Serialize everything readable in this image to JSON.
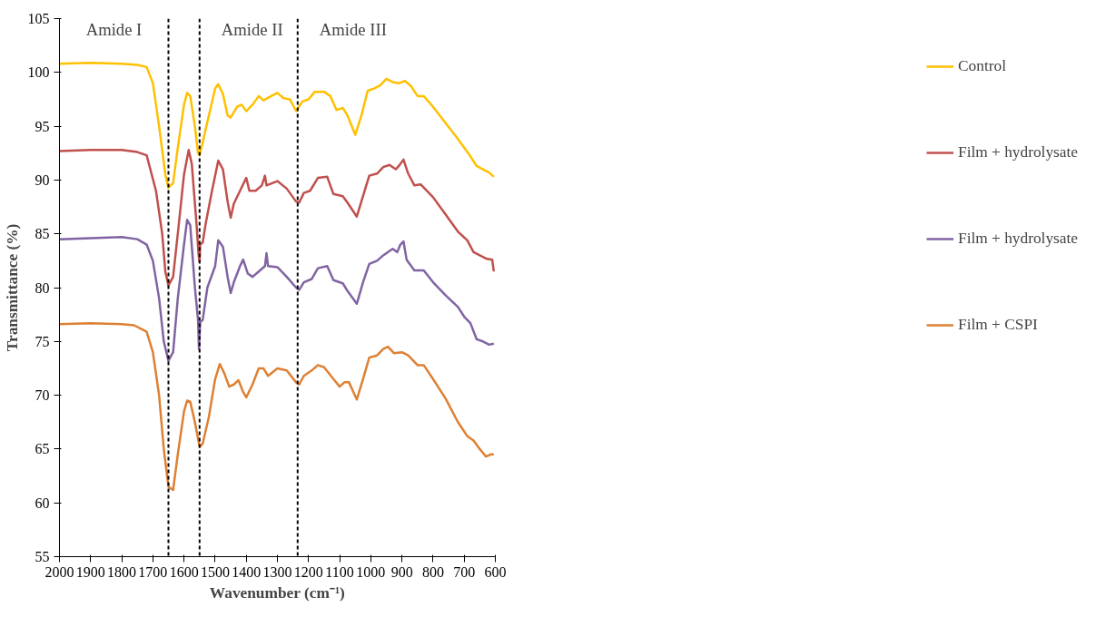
{
  "chart_data": {
    "type": "line",
    "xlabel": "Wavenumber (cm⁻¹)",
    "ylabel": "Transmittance (%)",
    "xlim": [
      2000,
      600
    ],
    "xticks": [
      2000,
      1900,
      1800,
      1700,
      1600,
      1500,
      1400,
      1300,
      1200,
      1100,
      1000,
      900,
      800,
      700,
      600
    ],
    "ylim": [
      55,
      105
    ],
    "yticks": [
      55,
      60,
      65,
      70,
      75,
      80,
      85,
      90,
      95,
      100,
      105
    ],
    "grid": false,
    "legend": "right",
    "marker": "none",
    "line_style": "solid",
    "ref_lines": [
      {
        "axis": "x",
        "value": 1650,
        "color": "#000000",
        "line_style": "dashed"
      },
      {
        "axis": "x",
        "value": 1550,
        "color": "#000000",
        "line_style": "dashed"
      },
      {
        "axis": "x",
        "value": 1235,
        "color": "#000000",
        "line_style": "dashed"
      }
    ],
    "annotations": [
      "Amide I",
      "Amide II",
      "Amide III"
    ],
    "series": [
      {
        "name": "Control",
        "color": "#ffc000",
        "x": [
          2000,
          1900,
          1800,
          1750,
          1720,
          1700,
          1680,
          1660,
          1650,
          1635,
          1620,
          1600,
          1590,
          1580,
          1565,
          1555,
          1550,
          1540,
          1520,
          1500,
          1490,
          1475,
          1460,
          1450,
          1430,
          1415,
          1400,
          1380,
          1360,
          1345,
          1320,
          1300,
          1280,
          1260,
          1240,
          1220,
          1200,
          1180,
          1150,
          1130,
          1110,
          1090,
          1075,
          1050,
          1030,
          1010,
          990,
          970,
          950,
          930,
          910,
          890,
          870,
          850,
          830,
          800,
          760,
          720,
          680,
          660,
          640,
          620,
          605
        ],
        "values": [
          100.8,
          100.9,
          100.8,
          100.7,
          100.5,
          99,
          95,
          90.5,
          89.3,
          89.7,
          93,
          97,
          98.1,
          97.8,
          95,
          92.5,
          92.3,
          93.5,
          96,
          98.5,
          98.9,
          98,
          96,
          95.8,
          96.8,
          97,
          96.4,
          97,
          97.8,
          97.4,
          97.8,
          98.1,
          97.6,
          97.5,
          96.4,
          97.3,
          97.5,
          98.2,
          98.2,
          97.8,
          96.5,
          96.7,
          96,
          94.2,
          96,
          98.3,
          98.5,
          98.8,
          99.4,
          99.1,
          99,
          99.2,
          98.7,
          97.8,
          97.8,
          96.8,
          95.3,
          93.8,
          92.2,
          91.3,
          91,
          90.7,
          90.3
        ]
      },
      {
        "name": "Film + hydrolysate",
        "color": "#c0504d",
        "x": [
          2000,
          1900,
          1800,
          1750,
          1720,
          1690,
          1670,
          1660,
          1650,
          1635,
          1620,
          1600,
          1585,
          1575,
          1560,
          1553,
          1550,
          1548,
          1540,
          1530,
          1510,
          1490,
          1475,
          1460,
          1450,
          1440,
          1420,
          1400,
          1390,
          1370,
          1350,
          1340,
          1335,
          1300,
          1270,
          1240,
          1230,
          1215,
          1195,
          1170,
          1140,
          1120,
          1090,
          1075,
          1045,
          1025,
          1005,
          980,
          960,
          940,
          920,
          910,
          895,
          880,
          860,
          840,
          800,
          760,
          720,
          690,
          670,
          650,
          630,
          610,
          605
        ],
        "values": [
          92.7,
          92.8,
          92.8,
          92.6,
          92.3,
          89,
          85,
          81.5,
          80.2,
          81,
          85,
          90.5,
          92.8,
          91.5,
          86,
          83,
          82.4,
          84,
          84.2,
          86,
          89,
          91.8,
          91,
          88,
          86.5,
          87.8,
          89,
          90.2,
          89,
          89,
          89.5,
          90.4,
          89.5,
          89.9,
          89.2,
          88,
          87.9,
          88.8,
          89,
          90.2,
          90.3,
          88.7,
          88.5,
          87.9,
          86.6,
          88.5,
          90.4,
          90.6,
          91.2,
          91.4,
          91,
          91.3,
          91.9,
          90.6,
          89.5,
          89.6,
          88.4,
          86.8,
          85.2,
          84.4,
          83.3,
          83,
          82.7,
          82.6,
          81.5
        ]
      },
      {
        "name": "Film + hydrolysate",
        "color": "#8064a2",
        "x": [
          2000,
          1900,
          1800,
          1750,
          1720,
          1700,
          1680,
          1665,
          1650,
          1635,
          1620,
          1600,
          1590,
          1580,
          1565,
          1555,
          1552,
          1548,
          1540,
          1525,
          1500,
          1490,
          1475,
          1460,
          1450,
          1440,
          1420,
          1410,
          1395,
          1380,
          1360,
          1340,
          1335,
          1330,
          1300,
          1270,
          1240,
          1230,
          1215,
          1190,
          1170,
          1140,
          1120,
          1090,
          1075,
          1045,
          1025,
          1005,
          980,
          960,
          930,
          915,
          905,
          895,
          885,
          860,
          830,
          800,
          760,
          720,
          700,
          680,
          660,
          640,
          620,
          605
        ],
        "values": [
          84.5,
          84.6,
          84.7,
          84.5,
          84,
          82.5,
          79,
          75,
          73.2,
          74,
          79,
          84,
          86.3,
          85.8,
          80,
          77,
          74.3,
          76.8,
          77,
          80,
          82,
          84.4,
          83.8,
          81,
          79.5,
          80.5,
          82,
          82.6,
          81.3,
          81,
          81.5,
          82,
          83.2,
          82,
          81.9,
          81,
          80,
          79.8,
          80.5,
          80.8,
          81.8,
          82,
          80.7,
          80.4,
          79.7,
          78.5,
          80.5,
          82.2,
          82.5,
          83,
          83.6,
          83.3,
          84,
          84.3,
          82.6,
          81.6,
          81.6,
          80.5,
          79.3,
          78.2,
          77.3,
          76.7,
          75.2,
          75,
          74.7,
          74.8
        ]
      },
      {
        "name": "Film + CSPI",
        "color": "#dd8033",
        "x": [
          2000,
          1900,
          1800,
          1760,
          1720,
          1700,
          1680,
          1665,
          1650,
          1635,
          1620,
          1600,
          1590,
          1580,
          1565,
          1550,
          1540,
          1520,
          1500,
          1485,
          1470,
          1455,
          1440,
          1425,
          1410,
          1400,
          1380,
          1360,
          1345,
          1330,
          1300,
          1270,
          1240,
          1230,
          1215,
          1190,
          1170,
          1150,
          1120,
          1100,
          1085,
          1070,
          1045,
          1025,
          1005,
          980,
          960,
          945,
          925,
          900,
          880,
          850,
          830,
          800,
          760,
          720,
          690,
          670,
          650,
          630,
          615,
          605
        ],
        "values": [
          76.6,
          76.7,
          76.6,
          76.5,
          75.9,
          74,
          70,
          65,
          61.5,
          61.2,
          64.5,
          68.5,
          69.5,
          69.4,
          67.5,
          65.2,
          65.5,
          68,
          71.5,
          72.9,
          72,
          70.8,
          71,
          71.4,
          70.3,
          69.8,
          71,
          72.5,
          72.5,
          71.8,
          72.5,
          72.3,
          71.2,
          71,
          71.8,
          72.3,
          72.8,
          72.6,
          71.5,
          70.8,
          71.2,
          71.2,
          69.6,
          71.5,
          73.5,
          73.7,
          74.3,
          74.5,
          73.9,
          74,
          73.7,
          72.8,
          72.8,
          71.5,
          69.7,
          67.5,
          66.2,
          65.8,
          65,
          64.3,
          64.5,
          64.5
        ]
      }
    ]
  }
}
